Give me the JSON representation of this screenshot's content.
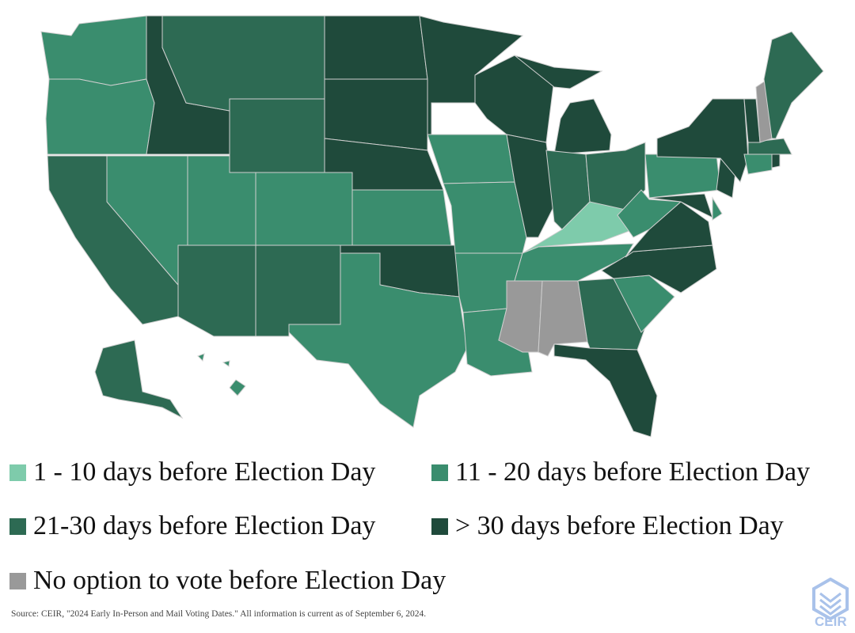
{
  "legend": {
    "categories": [
      {
        "label": "1 - 10 days before Election Day",
        "color": "#7ecbab"
      },
      {
        "label": "11 - 20 days before Election Day",
        "color": "#3a8d6e"
      },
      {
        "label": "21-30 days before Election Day",
        "color": "#2d6a53"
      },
      {
        "label": "> 30 days before Election Day",
        "color": "#1f4a3b"
      },
      {
        "label": "No option to vote before Election Day",
        "color": "#999999"
      }
    ]
  },
  "states": {
    "WA": 1,
    "OR": 1,
    "CA": 2,
    "ID": 3,
    "MT": 2,
    "WY": 2,
    "NV": 1,
    "UT": 1,
    "CO": 1,
    "AZ": 2,
    "NM": 2,
    "ND": 3,
    "SD": 3,
    "NE": 3,
    "KS": 1,
    "OK": 3,
    "TX": 1,
    "MN": 3,
    "IA": 1,
    "MO": 1,
    "AR": 1,
    "LA": 1,
    "WI": 3,
    "IL": 3,
    "MI": 3,
    "IN": 2,
    "OH": 2,
    "KY": 0,
    "TN": 1,
    "MS": 4,
    "AL": 4,
    "GA": 2,
    "FL": 3,
    "SC": 1,
    "NC": 3,
    "VA": 3,
    "WV": 1,
    "MD": 3,
    "DE": 1,
    "PA": 1,
    "NJ": 3,
    "NY": 3,
    "CT": 1,
    "RI": 3,
    "MA": 2,
    "VT": 3,
    "NH": 4,
    "ME": 2,
    "AK": 2,
    "HI": 1
  },
  "source": "Source: CEIR, \"2024 Early In-Person and Mail Voting Dates.\" All information is current as of September 6, 2024.",
  "logo_text": "CEIR",
  "logo_color": "#a9c2ea"
}
